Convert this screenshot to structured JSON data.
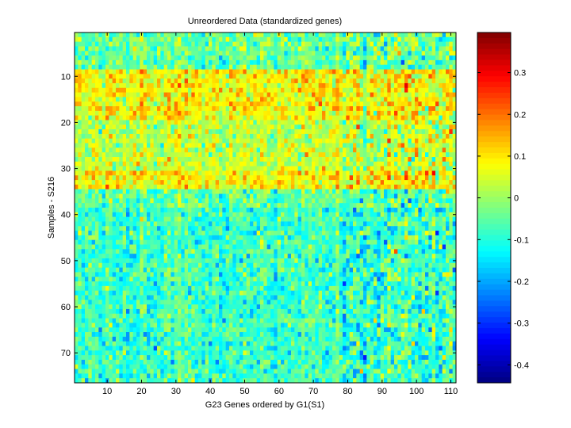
{
  "chart_data": {
    "type": "heatmap",
    "title": "Unreordered Data (standardized genes)",
    "xlabel": "G23 Genes ordered by G1(S1)",
    "ylabel": "Samples - S216",
    "n_rows": 76,
    "n_cols": 111,
    "xticks": [
      10,
      20,
      30,
      40,
      50,
      60,
      70,
      80,
      90,
      100,
      110
    ],
    "yticks": [
      10,
      20,
      30,
      40,
      50,
      60,
      70
    ],
    "colormap": "jet",
    "clim": [
      -0.443,
      0.396
    ],
    "colorbar_ticks": [
      0.3,
      0.2,
      0.1,
      0,
      -0.1,
      -0.2,
      -0.3,
      -0.4
    ],
    "colorbar_position": "right",
    "row_mean_bands": [
      {
        "rows": [
          1,
          8
        ],
        "mean": -0.04
      },
      {
        "rows": [
          9,
          9
        ],
        "mean": 0.09
      },
      {
        "rows": [
          10,
          19
        ],
        "mean": 0.08
      },
      {
        "rows": [
          20,
          30
        ],
        "mean": 0.03
      },
      {
        "rows": [
          31,
          34
        ],
        "mean": 0.09
      },
      {
        "rows": [
          35,
          38
        ],
        "mean": -0.05
      },
      {
        "rows": [
          39,
          76
        ],
        "mean": -0.08
      }
    ],
    "noise_sd": 0.05,
    "seed": 216
  }
}
